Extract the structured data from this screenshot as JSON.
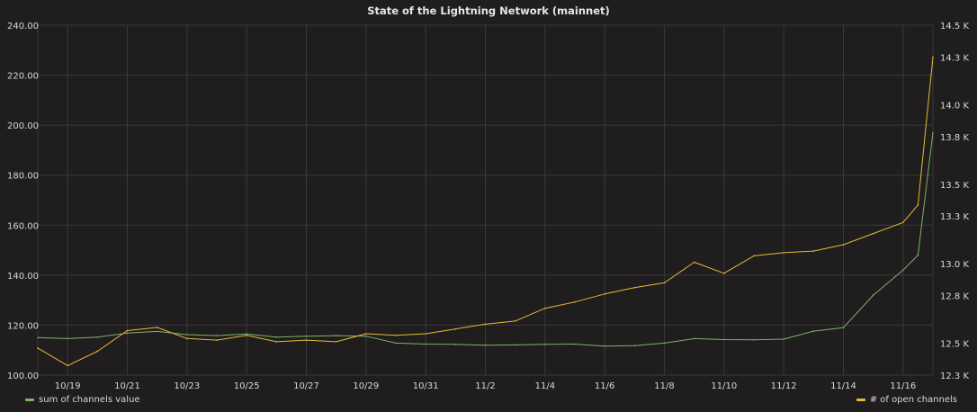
{
  "panel": {
    "title": "State of the Lightning Network (mainnet)"
  },
  "chart_data": {
    "type": "line",
    "title": "State of the Lightning Network (mainnet)",
    "grid": true,
    "legend_placement": "bottom",
    "x_ticks": [
      "10/19",
      "10/21",
      "10/23",
      "10/25",
      "10/27",
      "10/29",
      "10/31",
      "11/2",
      "11/4",
      "11/6",
      "11/8",
      "11/10",
      "11/12",
      "11/14",
      "11/16"
    ],
    "x_range": [
      "10/18",
      "11/17"
    ],
    "y_left": {
      "ylim": [
        100,
        240
      ],
      "tick_values": [
        100,
        120,
        140,
        160,
        180,
        200,
        220,
        240
      ],
      "tick_labels": [
        "100.00",
        "120.00",
        "140.00",
        "160.00",
        "180.00",
        "200.00",
        "220.00",
        "240.00"
      ]
    },
    "y_right": {
      "ylim": [
        12300,
        14500
      ],
      "tick_values": [
        12300,
        12500,
        12800,
        13000,
        13300,
        13500,
        13800,
        14000,
        14300,
        14500
      ],
      "tick_labels": [
        "12.3 K",
        "12.5 K",
        "12.8 K",
        "13.0 K",
        "13.3 K",
        "13.5 K",
        "13.8 K",
        "14.0 K",
        "14.3 K",
        "14.5 K"
      ]
    },
    "series": [
      {
        "name": "sum of channels value",
        "axis": "left",
        "color": "#7eb26d",
        "x": [
          "10/18",
          "10/19",
          "10/20",
          "10/21",
          "10/22",
          "10/23",
          "10/24",
          "10/25",
          "10/26",
          "10/27",
          "10/28",
          "10/29",
          "10/30",
          "10/31",
          "11/1",
          "11/2",
          "11/3",
          "11/4",
          "11/5",
          "11/6",
          "11/7",
          "11/8",
          "11/9",
          "11/10",
          "11/11",
          "11/12",
          "11/13",
          "11/14",
          "11/15",
          "11/16",
          "11/16.5",
          "11/17"
        ],
        "values": [
          115,
          114.6,
          115.2,
          116.8,
          117.5,
          116.2,
          115.8,
          116.5,
          115.2,
          115.6,
          115.8,
          115.6,
          112.8,
          112.4,
          112.3,
          112.0,
          112.1,
          112.3,
          112.4,
          111.6,
          111.8,
          112.8,
          114.6,
          114.2,
          114.1,
          114.4,
          117.6,
          119,
          132,
          142,
          148,
          197
        ]
      },
      {
        "name": "# of open channels",
        "axis": "right",
        "color": "#eab839",
        "x": [
          "10/18",
          "10/19",
          "10/20",
          "10/21",
          "10/22",
          "10/23",
          "10/24",
          "10/25",
          "10/26",
          "10/27",
          "10/28",
          "10/29",
          "10/30",
          "10/31",
          "11/1",
          "11/2",
          "11/3",
          "11/4",
          "11/5",
          "11/6",
          "11/7",
          "11/8",
          "11/9",
          "11/10",
          "11/11",
          "11/12",
          "11/13",
          "11/14",
          "11/15",
          "11/16",
          "11/16.5",
          "11/17"
        ],
        "values": [
          12470,
          12360,
          12450,
          12580,
          12600,
          12530,
          12520,
          12550,
          12510,
          12520,
          12510,
          12560,
          12550,
          12560,
          12590,
          12620,
          12640,
          12720,
          12760,
          12810,
          12850,
          12880,
          13010,
          12940,
          13050,
          13070,
          13080,
          13120,
          13190,
          13260,
          13370,
          14300
        ]
      }
    ]
  }
}
